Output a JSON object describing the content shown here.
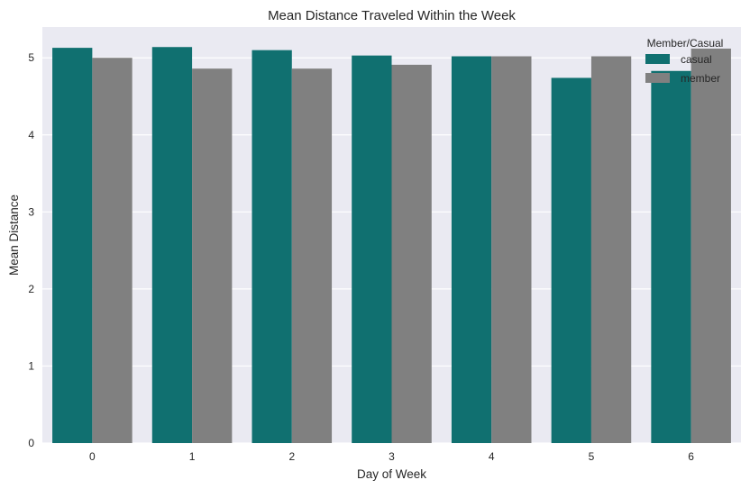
{
  "chart_data": {
    "type": "bar",
    "title": "Mean Distance Traveled Within the Week",
    "xlabel": "Day of Week",
    "ylabel": "Mean Distance",
    "categories": [
      "0",
      "1",
      "2",
      "3",
      "4",
      "5",
      "6"
    ],
    "yticks": [
      "0",
      "1",
      "2",
      "3",
      "4",
      "5"
    ],
    "ylim": [
      0,
      5.4
    ],
    "grid": true,
    "legend": {
      "title": "Member/Casual",
      "placement": "top-right"
    },
    "series": [
      {
        "name": "casual",
        "color": "#107070",
        "values": [
          5.13,
          5.14,
          5.1,
          5.03,
          5.02,
          4.74,
          4.83
        ]
      },
      {
        "name": "member",
        "color": "#808080",
        "values": [
          5.0,
          4.86,
          4.86,
          4.91,
          5.02,
          5.02,
          5.12
        ]
      }
    ],
    "background_color": "#EAEAF2"
  }
}
